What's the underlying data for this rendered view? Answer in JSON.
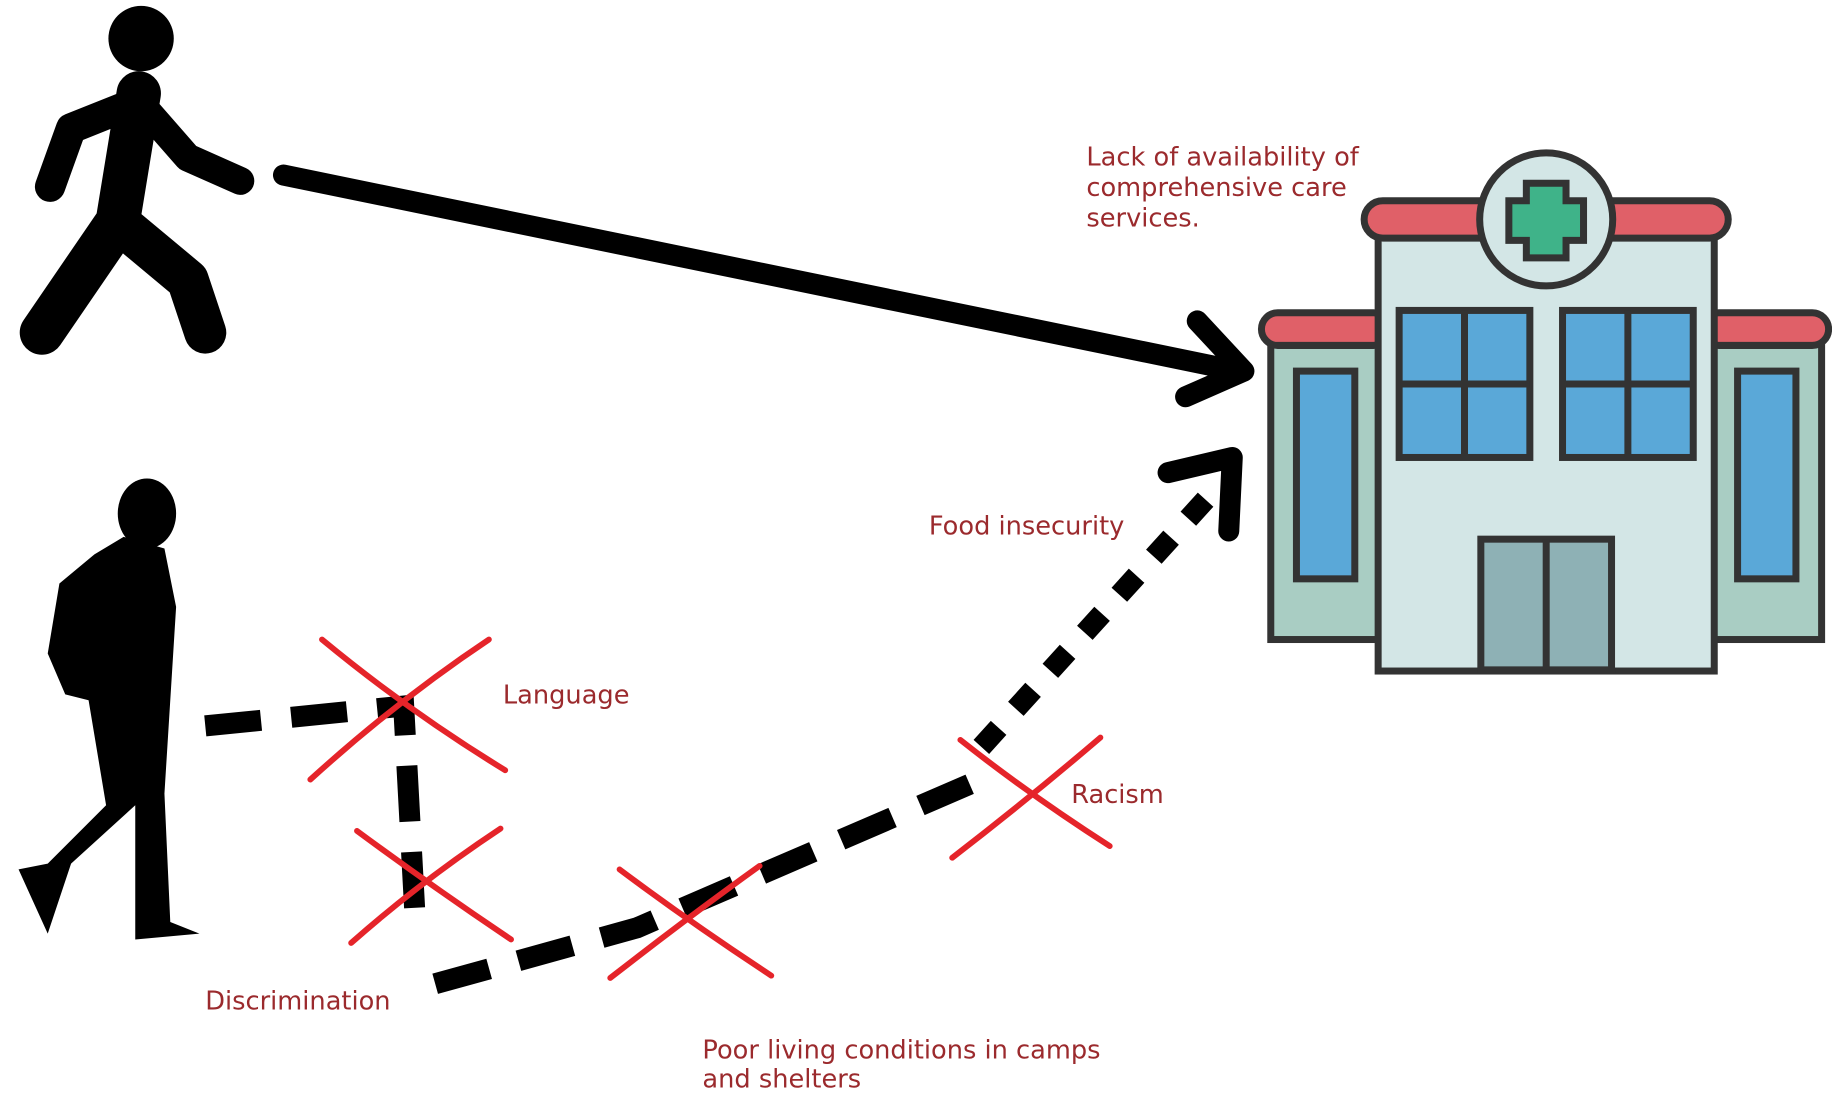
{
  "labels": {
    "care_services": [
      "Lack of availability of",
      "comprehensive care",
      "services."
    ],
    "food_insecurity": "Food insecurity",
    "language": "Language",
    "racism": "Racism",
    "discrimination": "Discrimination",
    "poor_living_conditions": [
      "Poor living conditions in camps",
      "and shelters"
    ]
  }
}
